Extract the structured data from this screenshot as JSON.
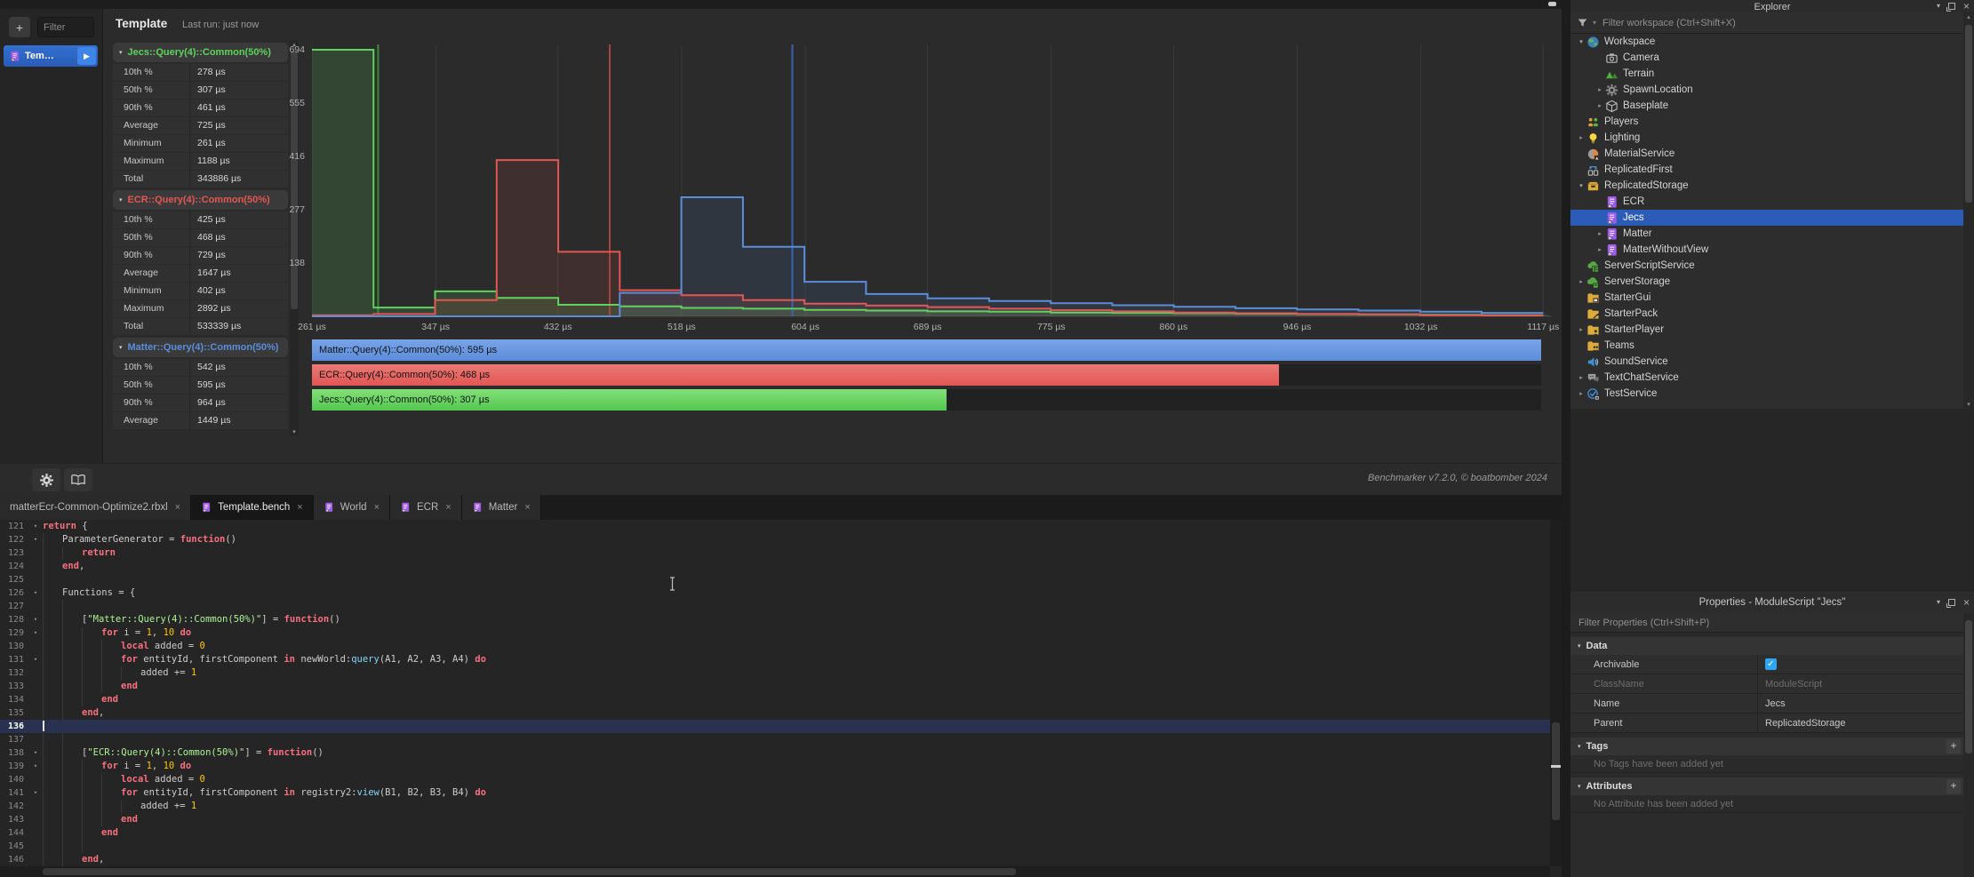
{
  "glyphs": {
    "plus": "+",
    "play": "▶",
    "close": "×",
    "chevron_down": "▾",
    "chevron_right": "▸",
    "fold": "▾",
    "up": "▴",
    "down": "▾",
    "check": "✓"
  },
  "benchmarker": {
    "sidebar": {
      "filter_placeholder": "Filter",
      "tab_label": "Tem…"
    },
    "header": {
      "title": "Template",
      "last_run": "Last run: just now"
    },
    "stats": [
      {
        "title": "Jecs::Query(4)::Common(50%)",
        "color": "#5ed35e",
        "rows": [
          [
            "10th %",
            "278 µs"
          ],
          [
            "50th %",
            "307 µs"
          ],
          [
            "90th %",
            "461 µs"
          ],
          [
            "Average",
            "725 µs"
          ],
          [
            "Minimum",
            "261 µs"
          ],
          [
            "Maximum",
            "1188 µs"
          ],
          [
            "Total",
            "343886 µs"
          ]
        ]
      },
      {
        "title": "ECR::Query(4)::Common(50%)",
        "color": "#e25654",
        "rows": [
          [
            "10th %",
            "425 µs"
          ],
          [
            "50th %",
            "468 µs"
          ],
          [
            "90th %",
            "729 µs"
          ],
          [
            "Average",
            "1647 µs"
          ],
          [
            "Minimum",
            "402 µs"
          ],
          [
            "Maximum",
            "2892 µs"
          ],
          [
            "Total",
            "533339 µs"
          ]
        ]
      },
      {
        "title": "Matter::Query(4)::Common(50%)",
        "color": "#5b8dd9",
        "rows": [
          [
            "10th %",
            "542 µs"
          ],
          [
            "50th %",
            "595 µs"
          ],
          [
            "90th %",
            "964 µs"
          ],
          [
            "Average",
            "1449 µs"
          ]
        ]
      }
    ],
    "footer": {
      "version": "Benchmarker v7.2.0, © boatbomber 2024"
    }
  },
  "chart_data": {
    "type": "step-histogram",
    "x_unit": "µs",
    "x_range": [
      261,
      1123
    ],
    "y_range": [
      0,
      694
    ],
    "y_ticks": [
      138,
      277,
      416,
      555,
      694
    ],
    "x_ticks": [
      261,
      347,
      432,
      518,
      604,
      689,
      775,
      860,
      946,
      1032,
      1117
    ],
    "x_tick_labels": [
      "261 µs",
      "347 µs",
      "432 µs",
      "518 µs",
      "604 µs",
      "689 µs",
      "775 µs",
      "860 µs",
      "946 µs",
      "1032 µs",
      "1117 µs"
    ],
    "bin_start": 261,
    "bin_width": 42.8,
    "grid": true,
    "series": [
      {
        "name": "Jecs::Query(4)::Common(50%)",
        "color": "#5ed35e",
        "median_color": "#3a8a3a",
        "median_us": 307,
        "counts": [
          694,
          23,
          65,
          48,
          30,
          26,
          22,
          20,
          17,
          15,
          13,
          12,
          10,
          9,
          8,
          7,
          6,
          5,
          4,
          3
        ]
      },
      {
        "name": "ECR::Query(4)::Common(50%)",
        "color": "#e25654",
        "median_color": "#a84440",
        "median_us": 468,
        "counts": [
          3,
          6,
          42,
          407,
          168,
          68,
          55,
          42,
          33,
          28,
          24,
          20,
          16,
          13,
          10,
          8,
          6,
          5,
          3,
          2
        ]
      },
      {
        "name": "Matter::Query(4)::Common(50%)",
        "color": "#5b8dd9",
        "median_color": "#3b63b0",
        "median_us": 595,
        "counts": [
          0,
          0,
          0,
          0,
          0,
          61,
          310,
          181,
          90,
          58,
          47,
          40,
          34,
          29,
          25,
          21,
          18,
          15,
          12,
          9
        ]
      }
    ],
    "legend": [
      {
        "label": "Matter::Query(4)::Common(50%): 595 µs",
        "value_us": 595,
        "color": "#5b8dd9",
        "color_light": "#79a3e8"
      },
      {
        "label": "ECR::Query(4)::Common(50%): 468 µs",
        "value_us": 468,
        "color": "#e25654",
        "color_light": "#ea7a76"
      },
      {
        "label": "Jecs::Query(4)::Common(50%): 307 µs",
        "value_us": 307,
        "color": "#52c84f",
        "color_light": "#84e078"
      }
    ]
  },
  "editor": {
    "tabs": [
      {
        "label": "matterEcr-Common-Optimize2.rbxl",
        "icon": false,
        "active": false
      },
      {
        "label": "Template.bench",
        "icon": true,
        "active": true
      },
      {
        "label": "World",
        "icon": true,
        "active": false
      },
      {
        "label": "ECR",
        "icon": true,
        "active": false
      },
      {
        "label": "Matter",
        "icon": true,
        "active": false
      }
    ],
    "lines": [
      {
        "n": 121,
        "fold": true,
        "g": 0,
        "t": [
          [
            "k",
            "return"
          ],
          [
            "p",
            " {"
          ]
        ]
      },
      {
        "n": 122,
        "fold": true,
        "g": 1,
        "t": [
          [
            "p",
            "ParameterGenerator = "
          ],
          [
            "k",
            "function"
          ],
          [
            "p",
            "()"
          ]
        ]
      },
      {
        "n": 123,
        "fold": false,
        "g": 2,
        "t": [
          [
            "k",
            "return"
          ]
        ]
      },
      {
        "n": 124,
        "fold": false,
        "g": 1,
        "t": [
          [
            "k",
            "end"
          ],
          [
            "p",
            ","
          ]
        ]
      },
      {
        "n": 125,
        "fold": false,
        "g": 1,
        "t": []
      },
      {
        "n": 126,
        "fold": true,
        "g": 1,
        "t": [
          [
            "p",
            "Functions = {"
          ]
        ]
      },
      {
        "n": 127,
        "fold": false,
        "g": 2,
        "t": []
      },
      {
        "n": 128,
        "fold": true,
        "g": 2,
        "t": [
          [
            "p",
            "["
          ],
          [
            "s",
            "\"Matter::Query(4)::Common(50%)\""
          ],
          [
            "p",
            "] = "
          ],
          [
            "k",
            "function"
          ],
          [
            "p",
            "()"
          ]
        ]
      },
      {
        "n": 129,
        "fold": true,
        "g": 3,
        "t": [
          [
            "k",
            "for"
          ],
          [
            "p",
            " i = "
          ],
          [
            "n",
            "1"
          ],
          [
            "p",
            ", "
          ],
          [
            "n",
            "10"
          ],
          [
            "p",
            " "
          ],
          [
            "k",
            "do"
          ]
        ]
      },
      {
        "n": 130,
        "fold": false,
        "g": 4,
        "t": [
          [
            "k",
            "local"
          ],
          [
            "p",
            " added = "
          ],
          [
            "n",
            "0"
          ]
        ]
      },
      {
        "n": 131,
        "fold": true,
        "g": 4,
        "t": [
          [
            "k",
            "for"
          ],
          [
            "p",
            " entityId, firstComponent "
          ],
          [
            "k",
            "in"
          ],
          [
            "p",
            " newWorld:"
          ],
          [
            "f",
            "query"
          ],
          [
            "p",
            "(A1, A2, A3, A4) "
          ],
          [
            "k",
            "do"
          ]
        ]
      },
      {
        "n": 132,
        "fold": false,
        "g": 5,
        "t": [
          [
            "p",
            "added += "
          ],
          [
            "n",
            "1"
          ]
        ]
      },
      {
        "n": 133,
        "fold": false,
        "g": 4,
        "t": [
          [
            "k",
            "end"
          ]
        ]
      },
      {
        "n": 134,
        "fold": false,
        "g": 3,
        "t": [
          [
            "k",
            "end"
          ]
        ]
      },
      {
        "n": 135,
        "fold": false,
        "g": 2,
        "t": [
          [
            "k",
            "end"
          ],
          [
            "p",
            ","
          ]
        ]
      },
      {
        "n": 136,
        "fold": false,
        "g": 0,
        "cursor": true,
        "t": []
      },
      {
        "n": 137,
        "fold": false,
        "g": 2,
        "t": []
      },
      {
        "n": 138,
        "fold": true,
        "g": 2,
        "t": [
          [
            "p",
            "["
          ],
          [
            "s",
            "\"ECR::Query(4)::Common(50%)\""
          ],
          [
            "p",
            "] = "
          ],
          [
            "k",
            "function"
          ],
          [
            "p",
            "()"
          ]
        ]
      },
      {
        "n": 139,
        "fold": true,
        "g": 3,
        "t": [
          [
            "k",
            "for"
          ],
          [
            "p",
            " i = "
          ],
          [
            "n",
            "1"
          ],
          [
            "p",
            ", "
          ],
          [
            "n",
            "10"
          ],
          [
            "p",
            " "
          ],
          [
            "k",
            "do"
          ]
        ]
      },
      {
        "n": 140,
        "fold": false,
        "g": 4,
        "t": [
          [
            "k",
            "local"
          ],
          [
            "p",
            " added = "
          ],
          [
            "n",
            "0"
          ]
        ]
      },
      {
        "n": 141,
        "fold": true,
        "g": 4,
        "t": [
          [
            "k",
            "for"
          ],
          [
            "p",
            " entityId, firstComponent "
          ],
          [
            "k",
            "in"
          ],
          [
            "p",
            " registry2:"
          ],
          [
            "f",
            "view"
          ],
          [
            "p",
            "(B1, B2, B3, B4) "
          ],
          [
            "k",
            "do"
          ]
        ]
      },
      {
        "n": 142,
        "fold": false,
        "g": 5,
        "t": [
          [
            "p",
            "added += "
          ],
          [
            "n",
            "1"
          ]
        ]
      },
      {
        "n": 143,
        "fold": false,
        "g": 4,
        "t": [
          [
            "k",
            "end"
          ]
        ]
      },
      {
        "n": 144,
        "fold": false,
        "g": 3,
        "t": [
          [
            "k",
            "end"
          ]
        ]
      },
      {
        "n": 145,
        "fold": false,
        "g": 3,
        "t": []
      },
      {
        "n": 146,
        "fold": false,
        "g": 2,
        "t": [
          [
            "k",
            "end"
          ],
          [
            "p",
            ","
          ]
        ]
      }
    ]
  },
  "explorer": {
    "title": "Explorer",
    "filter_placeholder": "Filter workspace (Ctrl+Shift+X)",
    "tree": [
      {
        "label": "Workspace",
        "icon": "workspace",
        "indent": 0,
        "arrow": "open"
      },
      {
        "label": "Camera",
        "icon": "camera",
        "indent": 1,
        "arrow": "none"
      },
      {
        "label": "Terrain",
        "icon": "terrain",
        "indent": 1,
        "arrow": "none"
      },
      {
        "label": "SpawnLocation",
        "icon": "spawn",
        "indent": 1,
        "arrow": "closed"
      },
      {
        "label": "Baseplate",
        "icon": "part",
        "indent": 1,
        "arrow": "closed"
      },
      {
        "label": "Players",
        "icon": "players",
        "indent": 0,
        "arrow": "none"
      },
      {
        "label": "Lighting",
        "icon": "lighting",
        "indent": 0,
        "arrow": "closed"
      },
      {
        "label": "MaterialService",
        "icon": "material",
        "indent": 0,
        "arrow": "none"
      },
      {
        "label": "ReplicatedFirst",
        "icon": "replicatedfirst",
        "indent": 0,
        "arrow": "none"
      },
      {
        "label": "ReplicatedStorage",
        "icon": "storage",
        "indent": 0,
        "arrow": "open"
      },
      {
        "label": "ECR",
        "icon": "module",
        "indent": 1,
        "arrow": "none"
      },
      {
        "label": "Jecs",
        "icon": "module",
        "indent": 1,
        "arrow": "none",
        "selected": true
      },
      {
        "label": "Matter",
        "icon": "module",
        "indent": 1,
        "arrow": "closed"
      },
      {
        "label": "MatterWithoutView",
        "icon": "module",
        "indent": 1,
        "arrow": "closed"
      },
      {
        "label": "ServerScriptService",
        "icon": "serverscript",
        "indent": 0,
        "arrow": "none"
      },
      {
        "label": "ServerStorage",
        "icon": "serverstorage",
        "indent": 0,
        "arrow": "closed"
      },
      {
        "label": "StarterGui",
        "icon": "foldergui",
        "indent": 0,
        "arrow": "none"
      },
      {
        "label": "StarterPack",
        "icon": "folderpack",
        "indent": 0,
        "arrow": "none"
      },
      {
        "label": "StarterPlayer",
        "icon": "folderplayer",
        "indent": 0,
        "arrow": "closed"
      },
      {
        "label": "Teams",
        "icon": "folderteams",
        "indent": 0,
        "arrow": "none"
      },
      {
        "label": "SoundService",
        "icon": "sound",
        "indent": 0,
        "arrow": "none"
      },
      {
        "label": "TextChatService",
        "icon": "chat",
        "indent": 0,
        "arrow": "closed"
      },
      {
        "label": "TestService",
        "icon": "test",
        "indent": 0,
        "arrow": "closed"
      }
    ]
  },
  "properties": {
    "title": "Properties - ModuleScript \"Jecs\"",
    "filter_placeholder": "Filter Properties (Ctrl+Shift+P)",
    "sections": [
      {
        "name": "Data",
        "rows": [
          {
            "label": "Archivable",
            "type": "checkbox",
            "checked": true
          },
          {
            "label": "ClassName",
            "value": "ModuleScript",
            "dim": true
          },
          {
            "label": "Name",
            "value": "Jecs"
          },
          {
            "label": "Parent",
            "value": "ReplicatedStorage"
          }
        ]
      },
      {
        "name": "Tags",
        "add_button": true,
        "empty_text": "No Tags have been added yet"
      },
      {
        "name": "Attributes",
        "add_button": true,
        "empty_text": "No Attribute has been added yet"
      }
    ]
  }
}
